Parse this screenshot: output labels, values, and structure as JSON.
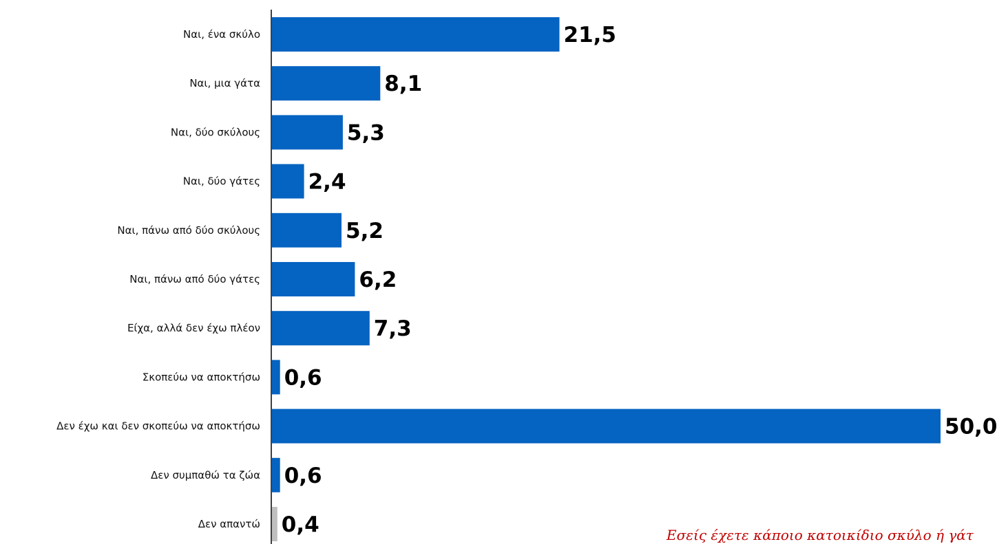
{
  "chart_data": {
    "type": "bar",
    "orientation": "horizontal",
    "categories": [
      "Ναι, ένα σκύλο",
      "Ναι, μια γάτα",
      "Ναι, δύο σκύλους",
      "Ναι, δύο γάτες",
      "Ναι, πάνω από δύο σκύλους",
      "Ναι, πάνω από δύο γάτες",
      "Είχα, αλλά δεν έχω πλέον",
      "Σκοπεύω να αποκτήσω",
      "Δεν έχω και δεν σκοπεύω να αποκτήσω",
      "Δεν συμπαθώ τα ζώα",
      "Δεν απαντώ"
    ],
    "values": [
      21.5,
      8.1,
      5.3,
      2.4,
      5.2,
      6.2,
      7.3,
      0.6,
      50.0,
      0.6,
      0.4
    ],
    "value_labels": [
      "21,5",
      "8,1",
      "5,3",
      "2,4",
      "5,2",
      "6,2",
      "7,3",
      "0,6",
      "50,0",
      "0,6",
      "0,4"
    ],
    "bar_colors": [
      "#0563c1",
      "#0563c1",
      "#0563c1",
      "#0563c1",
      "#0563c1",
      "#0563c1",
      "#0563c1",
      "#0563c1",
      "#0563c1",
      "#0563c1",
      "#bfbfbf"
    ],
    "xlim": [
      0,
      50
    ],
    "grid": false,
    "title": "",
    "xlabel": "",
    "ylabel": ""
  },
  "question": "Εσείς έχετε κάποιο κατοικίδιο σκύλο ή γάτ",
  "colors": {
    "bar": "#0563c1",
    "no_answer_bar": "#bfbfbf",
    "axis": "#000000",
    "question_text": "#c00000"
  }
}
